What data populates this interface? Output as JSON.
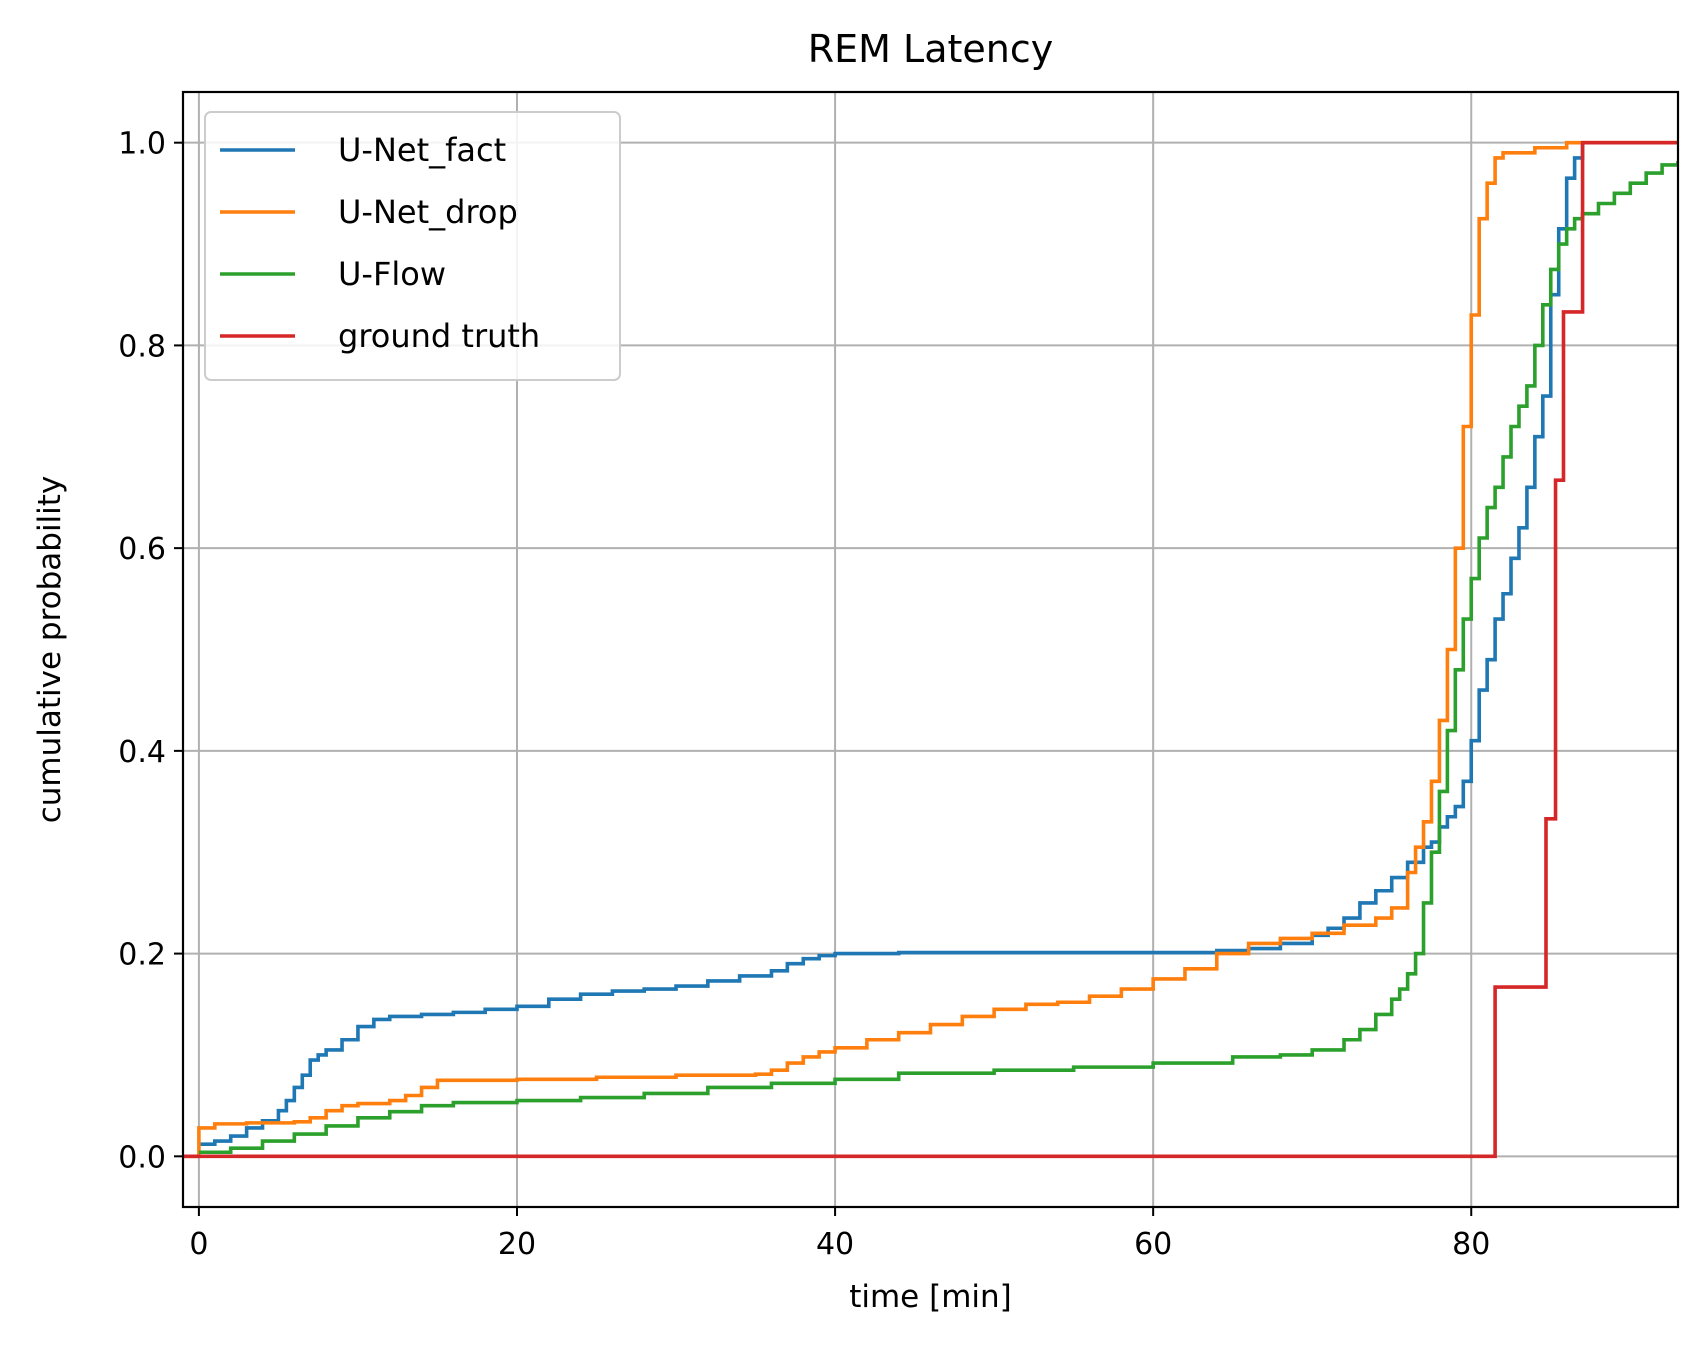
{
  "chart_data": {
    "type": "line",
    "step": true,
    "title": "REM Latency",
    "xlabel": "time [min]",
    "ylabel": "cumulative probability",
    "xlim": [
      -1,
      93
    ],
    "ylim": [
      -0.05,
      1.05
    ],
    "xticks": [
      0,
      20,
      40,
      60,
      80
    ],
    "xtick_labels": [
      "0",
      "20",
      "40",
      "60",
      "80"
    ],
    "yticks": [
      0.0,
      0.2,
      0.4,
      0.6,
      0.8,
      1.0
    ],
    "ytick_labels": [
      "0.0",
      "0.2",
      "0.4",
      "0.6",
      "0.8",
      "1.0"
    ],
    "grid": true,
    "legend_position": "top-left",
    "series": [
      {
        "name": "U-Net_fact",
        "color": "#1f77b4",
        "x": [
          0,
          1,
          2,
          3,
          4,
          5,
          5.5,
          6,
          6.5,
          7,
          7.5,
          8,
          9,
          10,
          11,
          12,
          14,
          16,
          18,
          20,
          22,
          24,
          26,
          28,
          30,
          32,
          34,
          36,
          37,
          38,
          39,
          40,
          44,
          50,
          60,
          64,
          66,
          68,
          70,
          71,
          72,
          73,
          74,
          75,
          76,
          77,
          77.5,
          78,
          78.5,
          79,
          79.5,
          80,
          80.5,
          81,
          81.5,
          82,
          82.5,
          83,
          83.5,
          84,
          84.5,
          85,
          85.5,
          86,
          86.5,
          87
        ],
        "y": [
          0.012,
          0.015,
          0.02,
          0.028,
          0.035,
          0.045,
          0.055,
          0.068,
          0.08,
          0.095,
          0.1,
          0.105,
          0.115,
          0.128,
          0.135,
          0.138,
          0.14,
          0.142,
          0.145,
          0.148,
          0.155,
          0.16,
          0.163,
          0.165,
          0.168,
          0.173,
          0.178,
          0.183,
          0.19,
          0.195,
          0.198,
          0.2,
          0.201,
          0.201,
          0.201,
          0.203,
          0.205,
          0.21,
          0.218,
          0.225,
          0.235,
          0.25,
          0.262,
          0.275,
          0.29,
          0.305,
          0.31,
          0.325,
          0.335,
          0.345,
          0.37,
          0.41,
          0.46,
          0.49,
          0.53,
          0.555,
          0.59,
          0.62,
          0.66,
          0.71,
          0.75,
          0.85,
          0.915,
          0.965,
          0.985,
          1.0
        ]
      },
      {
        "name": "U-Net_drop",
        "color": "#ff7f0e",
        "x": [
          -1,
          0,
          1,
          3,
          6,
          7,
          8,
          9,
          10,
          12,
          13,
          14,
          15,
          20,
          25,
          30,
          35,
          36,
          37,
          38,
          39,
          40,
          42,
          44,
          46,
          48,
          50,
          52,
          54,
          56,
          58,
          60,
          62,
          64,
          66,
          68,
          70,
          72,
          74,
          75,
          76,
          76.5,
          77,
          77.5,
          78,
          78.5,
          79,
          79.5,
          80,
          80.5,
          81,
          81.5,
          82,
          84,
          86,
          93
        ],
        "y": [
          0.0,
          0.028,
          0.032,
          0.033,
          0.034,
          0.038,
          0.045,
          0.05,
          0.052,
          0.055,
          0.06,
          0.068,
          0.075,
          0.076,
          0.078,
          0.08,
          0.081,
          0.085,
          0.092,
          0.098,
          0.103,
          0.107,
          0.115,
          0.122,
          0.13,
          0.138,
          0.145,
          0.15,
          0.152,
          0.158,
          0.165,
          0.175,
          0.185,
          0.2,
          0.21,
          0.215,
          0.22,
          0.228,
          0.235,
          0.245,
          0.28,
          0.305,
          0.33,
          0.37,
          0.43,
          0.5,
          0.6,
          0.72,
          0.83,
          0.925,
          0.96,
          0.985,
          0.99,
          0.995,
          1.0,
          1.0
        ]
      },
      {
        "name": "U-Flow",
        "color": "#2ca02c",
        "x": [
          0,
          2,
          4,
          6,
          8,
          10,
          12,
          14,
          16,
          20,
          24,
          28,
          32,
          36,
          40,
          44,
          50,
          55,
          60,
          65,
          68,
          70,
          72,
          73,
          74,
          75,
          75.5,
          76,
          76.5,
          77,
          77.5,
          78,
          78.5,
          79,
          79.5,
          80,
          80.5,
          81,
          81.5,
          82,
          82.5,
          83,
          83.5,
          84,
          84.5,
          85,
          85.5,
          86,
          86.5,
          87,
          88,
          89,
          90,
          91,
          92,
          93
        ],
        "y": [
          0.004,
          0.008,
          0.015,
          0.022,
          0.03,
          0.038,
          0.044,
          0.05,
          0.053,
          0.055,
          0.058,
          0.062,
          0.068,
          0.072,
          0.076,
          0.082,
          0.085,
          0.088,
          0.092,
          0.098,
          0.1,
          0.105,
          0.115,
          0.125,
          0.14,
          0.155,
          0.165,
          0.18,
          0.2,
          0.25,
          0.3,
          0.36,
          0.42,
          0.48,
          0.53,
          0.57,
          0.61,
          0.64,
          0.66,
          0.69,
          0.72,
          0.74,
          0.76,
          0.8,
          0.84,
          0.875,
          0.9,
          0.915,
          0.925,
          0.93,
          0.94,
          0.95,
          0.96,
          0.97,
          0.978,
          0.982
        ]
      },
      {
        "name": "ground truth",
        "color": "#d62728",
        "x": [
          -1,
          81.5,
          84.7,
          85.3,
          85.8,
          87,
          93
        ],
        "y": [
          0.0,
          0.167,
          0.333,
          0.667,
          0.833,
          1.0,
          1.0
        ]
      }
    ]
  }
}
